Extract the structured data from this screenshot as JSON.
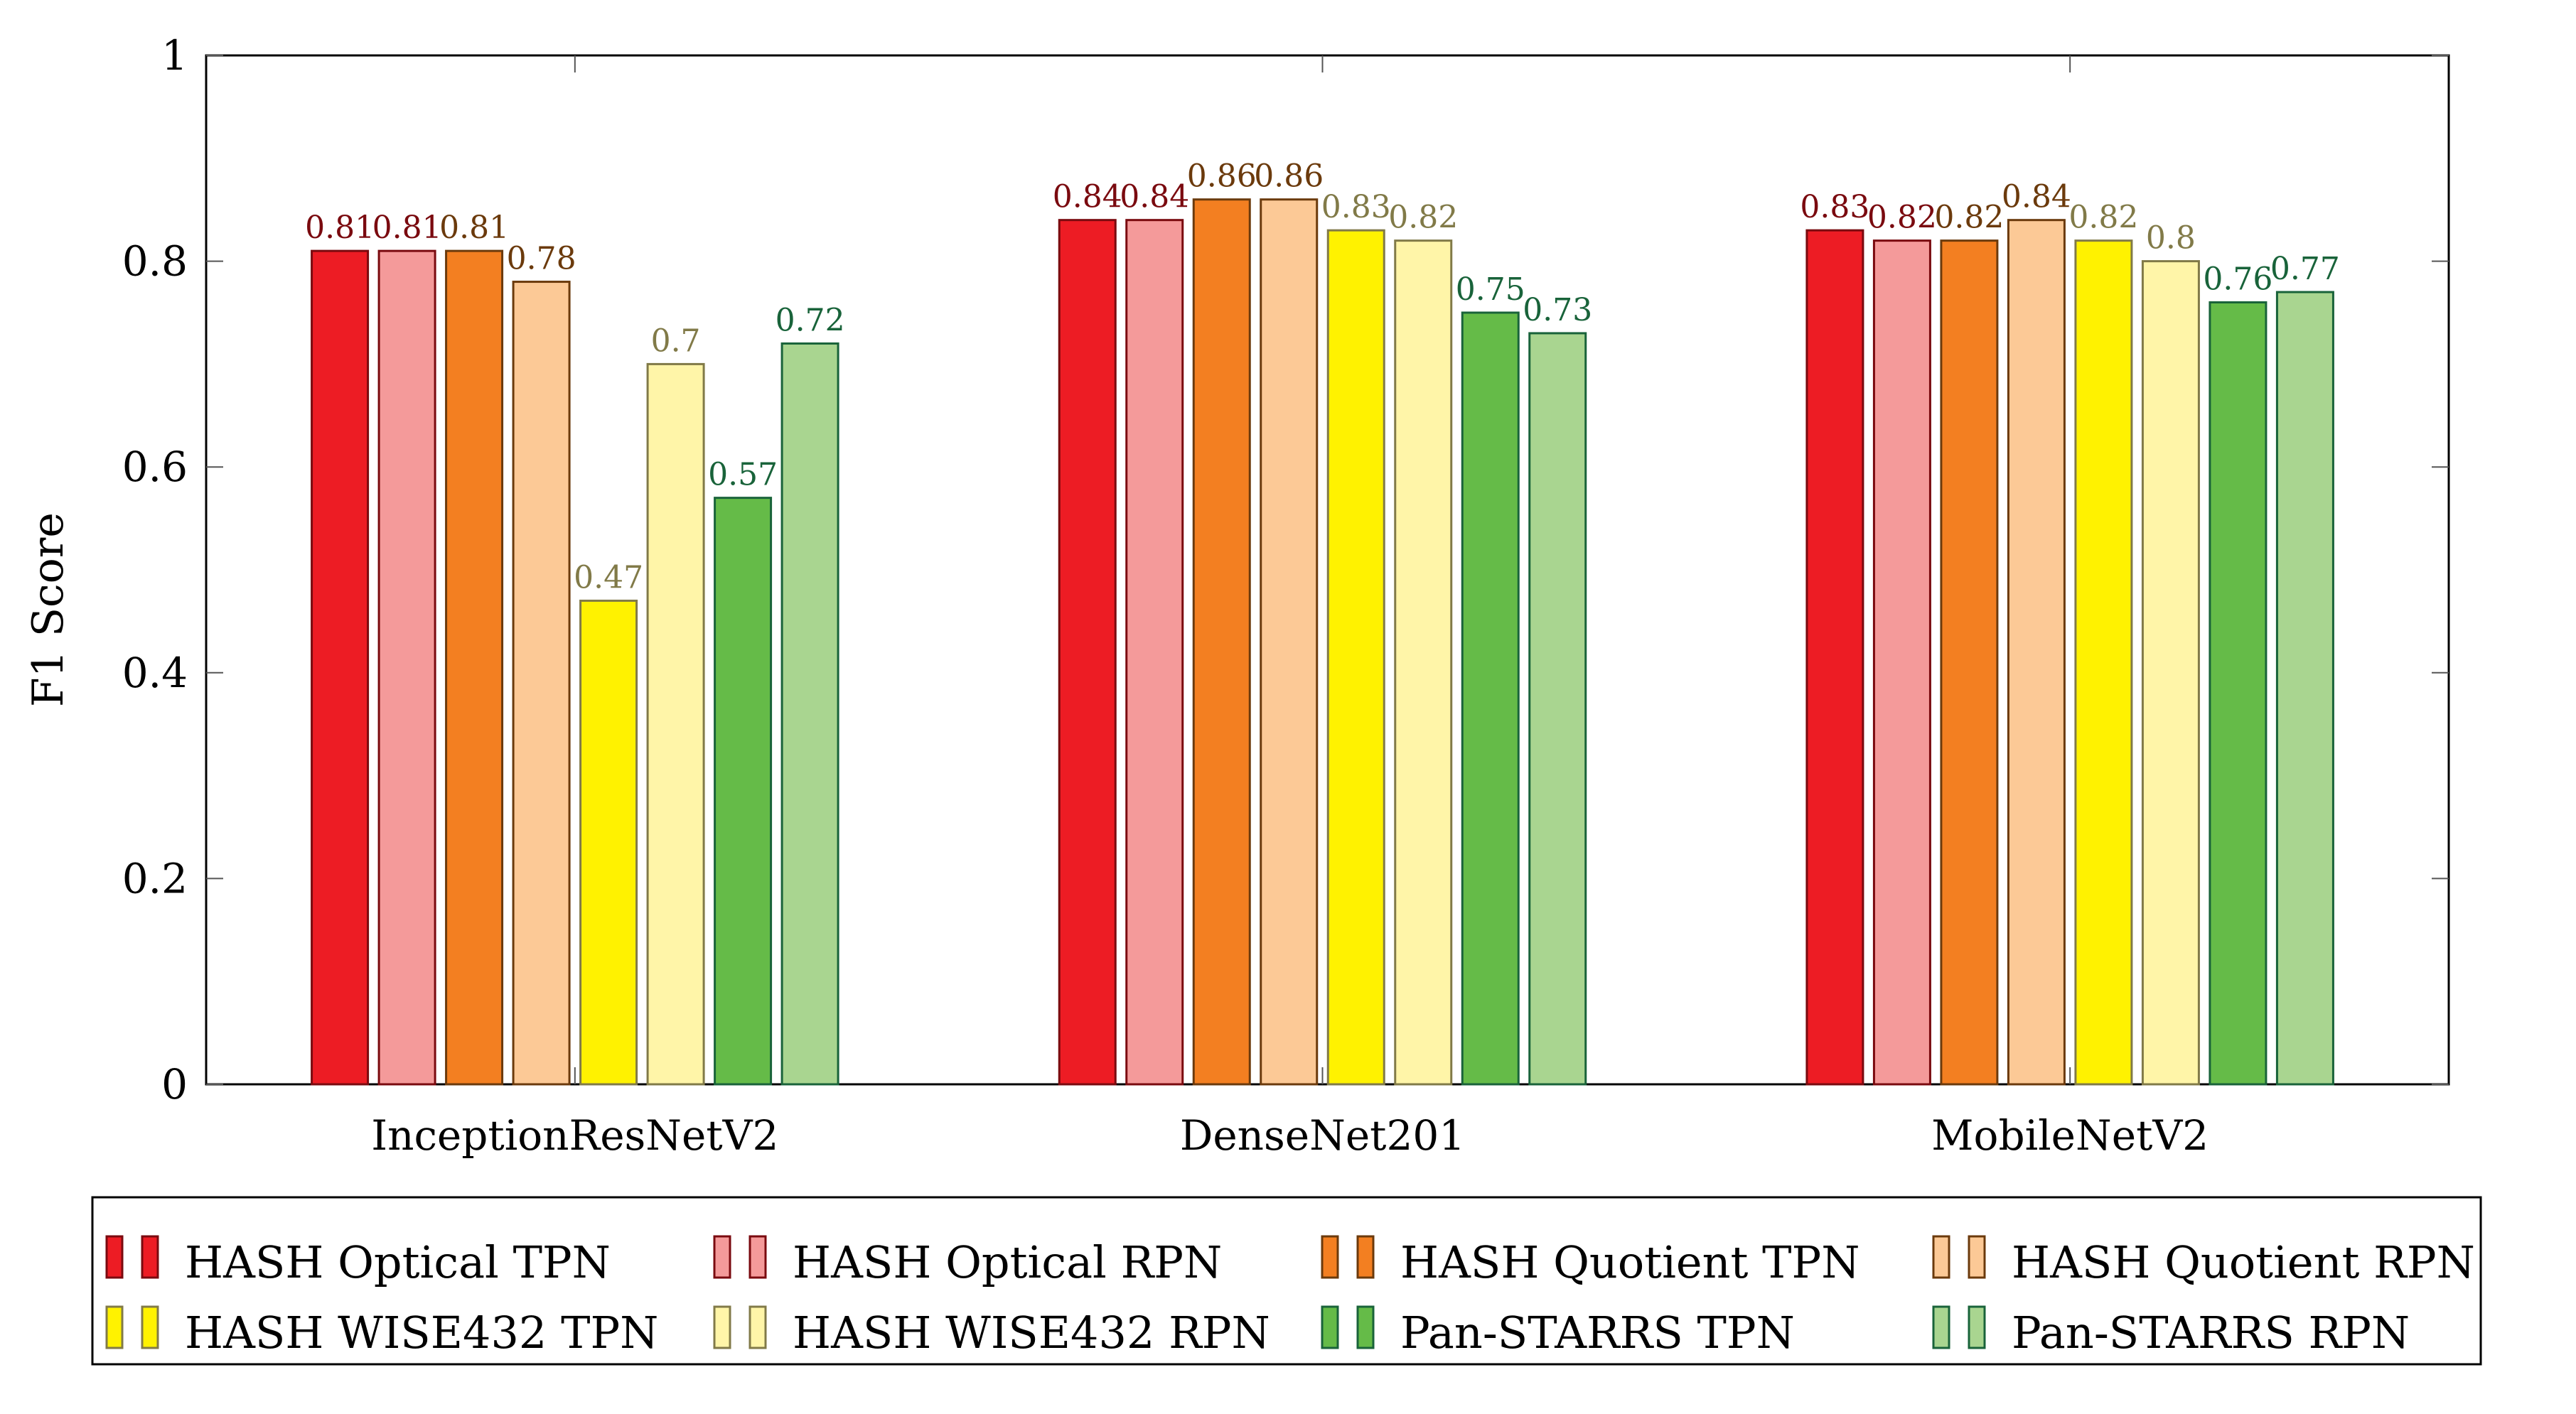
{
  "chart_data": {
    "type": "bar",
    "title": "",
    "xlabel": "",
    "ylabel": "F1 Score",
    "ylim": [
      0,
      1
    ],
    "yticks": [
      "0",
      "0.2",
      "0.4",
      "0.6",
      "0.8",
      "1"
    ],
    "categories": [
      "InceptionResNetV2",
      "DenseNet201",
      "MobileNetV2"
    ],
    "legend_position": "bottom",
    "series": [
      {
        "name": "HASH Optical TPN",
        "values": [
          0.81,
          0.84,
          0.83
        ],
        "labels": [
          "0.81",
          "0.84",
          "0.83"
        ],
        "fill": "#ed1c24",
        "stroke": "#7a0a0f",
        "label_color": "#7a0a0f"
      },
      {
        "name": "HASH Optical RPN",
        "values": [
          0.81,
          0.84,
          0.82
        ],
        "labels": [
          "0.81",
          "0.84",
          "0.82"
        ],
        "fill": "#f49a9a",
        "stroke": "#7a0a0f",
        "label_color": "#7a0a0f"
      },
      {
        "name": "HASH Quotient TPN",
        "values": [
          0.81,
          0.86,
          0.82
        ],
        "labels": [
          "0.81",
          "0.86",
          "0.82"
        ],
        "fill": "#f37f21",
        "stroke": "#6b3a0c",
        "label_color": "#6b3a0c"
      },
      {
        "name": "HASH Quotient RPN",
        "values": [
          0.78,
          0.86,
          0.84
        ],
        "labels": [
          "0.78",
          "0.86",
          "0.84"
        ],
        "fill": "#fcc996",
        "stroke": "#6b3a0c",
        "label_color": "#6b3a0c"
      },
      {
        "name": "HASH WISE432 TPN",
        "values": [
          0.47,
          0.83,
          0.82
        ],
        "labels": [
          "0.47",
          "0.83",
          "0.82"
        ],
        "fill": "#fff200",
        "stroke": "#817a48",
        "label_color": "#817a48"
      },
      {
        "name": "HASH WISE432 RPN",
        "values": [
          0.7,
          0.82,
          0.8
        ],
        "labels": [
          "0.7",
          "0.82",
          "0.8"
        ],
        "fill": "#fff5a8",
        "stroke": "#817a48",
        "label_color": "#817a48"
      },
      {
        "name": "Pan-STARRS TPN",
        "values": [
          0.57,
          0.75,
          0.76
        ],
        "labels": [
          "0.57",
          "0.75",
          "0.76"
        ],
        "fill": "#65bb48",
        "stroke": "#19633a",
        "label_color": "#19633a"
      },
      {
        "name": "Pan-STARRS RPN",
        "values": [
          0.72,
          0.73,
          0.77
        ],
        "labels": [
          "0.72",
          "0.73",
          "0.77"
        ],
        "fill": "#a9d590",
        "stroke": "#19633a",
        "label_color": "#19633a"
      }
    ]
  }
}
